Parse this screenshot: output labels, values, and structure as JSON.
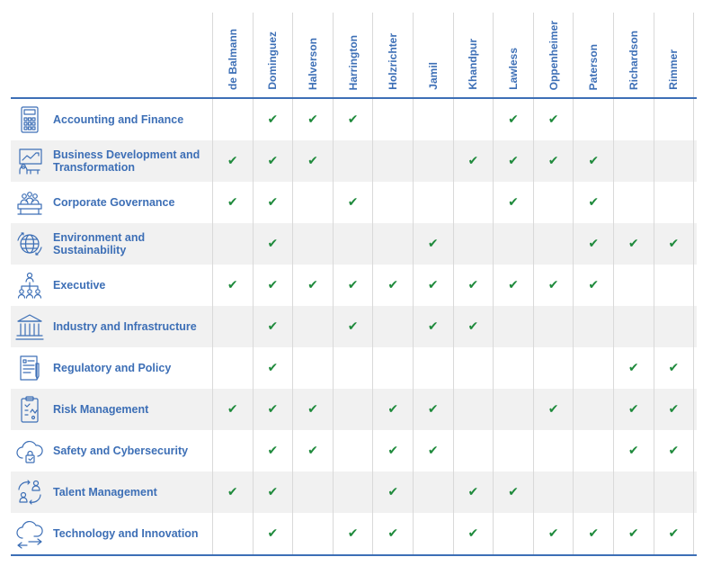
{
  "columns": [
    "de Balmann",
    "Dominguez",
    "Halverson",
    "Harrington",
    "Holzrichter",
    "Jamil",
    "Khandpur",
    "Lawless",
    "Oppenheimer",
    "Paterson",
    "Richardson",
    "Rimmer"
  ],
  "check_glyph": "✔",
  "rows": [
    {
      "label": "Accounting and Finance",
      "icon": "calculator-icon",
      "checks": [
        0,
        1,
        1,
        1,
        0,
        0,
        0,
        1,
        1,
        0,
        0,
        0
      ]
    },
    {
      "label": "Business Development and Transformation",
      "icon": "presentation-icon",
      "checks": [
        1,
        1,
        1,
        0,
        0,
        0,
        1,
        1,
        1,
        1,
        0,
        0
      ]
    },
    {
      "label": "Corporate Governance",
      "icon": "boardroom-icon",
      "checks": [
        1,
        1,
        0,
        1,
        0,
        0,
        0,
        1,
        0,
        1,
        0,
        0
      ]
    },
    {
      "label": "Environment and Sustainability",
      "icon": "globe-icon",
      "checks": [
        0,
        1,
        0,
        0,
        0,
        1,
        0,
        0,
        0,
        1,
        1,
        1
      ]
    },
    {
      "label": "Executive",
      "icon": "org-chart-icon",
      "checks": [
        1,
        1,
        1,
        1,
        1,
        1,
        1,
        1,
        1,
        1,
        0,
        0
      ]
    },
    {
      "label": "Industry and Infrastructure",
      "icon": "building-icon",
      "checks": [
        0,
        1,
        0,
        1,
        0,
        1,
        1,
        0,
        0,
        0,
        0,
        0
      ]
    },
    {
      "label": "Regulatory and Policy",
      "icon": "document-icon",
      "checks": [
        0,
        1,
        0,
        0,
        0,
        0,
        0,
        0,
        0,
        0,
        1,
        1
      ]
    },
    {
      "label": "Risk Management",
      "icon": "clipboard-icon",
      "checks": [
        1,
        1,
        1,
        0,
        1,
        1,
        0,
        0,
        1,
        0,
        1,
        1
      ]
    },
    {
      "label": "Safety and Cybersecurity",
      "icon": "cloud-lock-icon",
      "checks": [
        0,
        1,
        1,
        0,
        1,
        1,
        0,
        0,
        0,
        0,
        1,
        1
      ]
    },
    {
      "label": "Talent Management",
      "icon": "people-exchange-icon",
      "checks": [
        1,
        1,
        0,
        0,
        1,
        0,
        1,
        1,
        0,
        0,
        0,
        0
      ]
    },
    {
      "label": "Technology and Innovation",
      "icon": "cloud-transfer-icon",
      "checks": [
        0,
        1,
        0,
        1,
        1,
        0,
        1,
        0,
        1,
        1,
        1,
        1
      ]
    }
  ],
  "colors": {
    "accent": "#3d6fb6",
    "check": "#1f8a3c",
    "stripe": "#f1f1f1"
  }
}
